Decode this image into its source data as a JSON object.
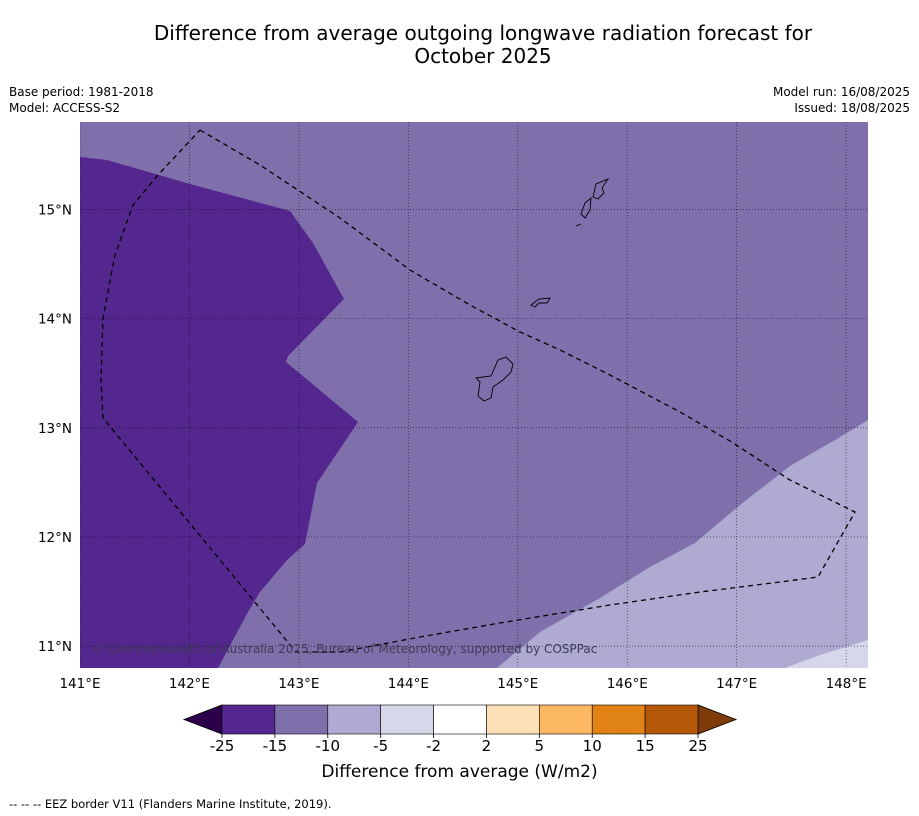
{
  "header": {
    "title_line1": "Difference from average outgoing longwave radiation forecast for",
    "title_line2": "October 2025",
    "base_period": "Base period: 1981-2018",
    "model": "Model: ACCESS-S2",
    "model_run": "Model run: 16/08/2025",
    "issued": "Issued: 18/08/2025"
  },
  "map": {
    "lon_range": [
      141.0,
      148.2
    ],
    "lat_range": [
      10.8,
      15.8
    ],
    "lon_ticks": [
      141,
      142,
      143,
      144,
      145,
      146,
      147,
      148
    ],
    "lon_labels": [
      "141°E",
      "142°E",
      "143°E",
      "144°E",
      "145°E",
      "146°E",
      "147°E",
      "148°E"
    ],
    "lat_ticks": [
      11,
      12,
      13,
      14,
      15
    ],
    "lat_labels": [
      "11°N",
      "12°N",
      "13°N",
      "14°N",
      "15°N"
    ],
    "copyright": "© Commonwealth of Australia 2025, Bureau of Meteorology, supported by COSPPac",
    "fill_colors": {
      "band_m25_m15": "#54278f",
      "band_m15_m10": "#7f70ab",
      "band_m10_m5": "#aeaad1",
      "band_m5_m2": "#d7d7ea"
    }
  },
  "colorbar": {
    "tick_labels": [
      "-25",
      "-15",
      "-10",
      "-5",
      "-2",
      "2",
      "5",
      "10",
      "15",
      "25"
    ],
    "colors": [
      "#54278f",
      "#7f70ab",
      "#aeaad1",
      "#d7d7ea",
      "#ffffff",
      "#fde0b6",
      "#fdb863",
      "#e08214",
      "#b35806"
    ],
    "extend_low_color": "#2d004b",
    "extend_high_color": "#7f3b08",
    "label": "Difference from average (W/m2)"
  },
  "footer": {
    "legend": "--  --  -- EEZ border V11 (Flanders Marine Institute, 2019)."
  }
}
